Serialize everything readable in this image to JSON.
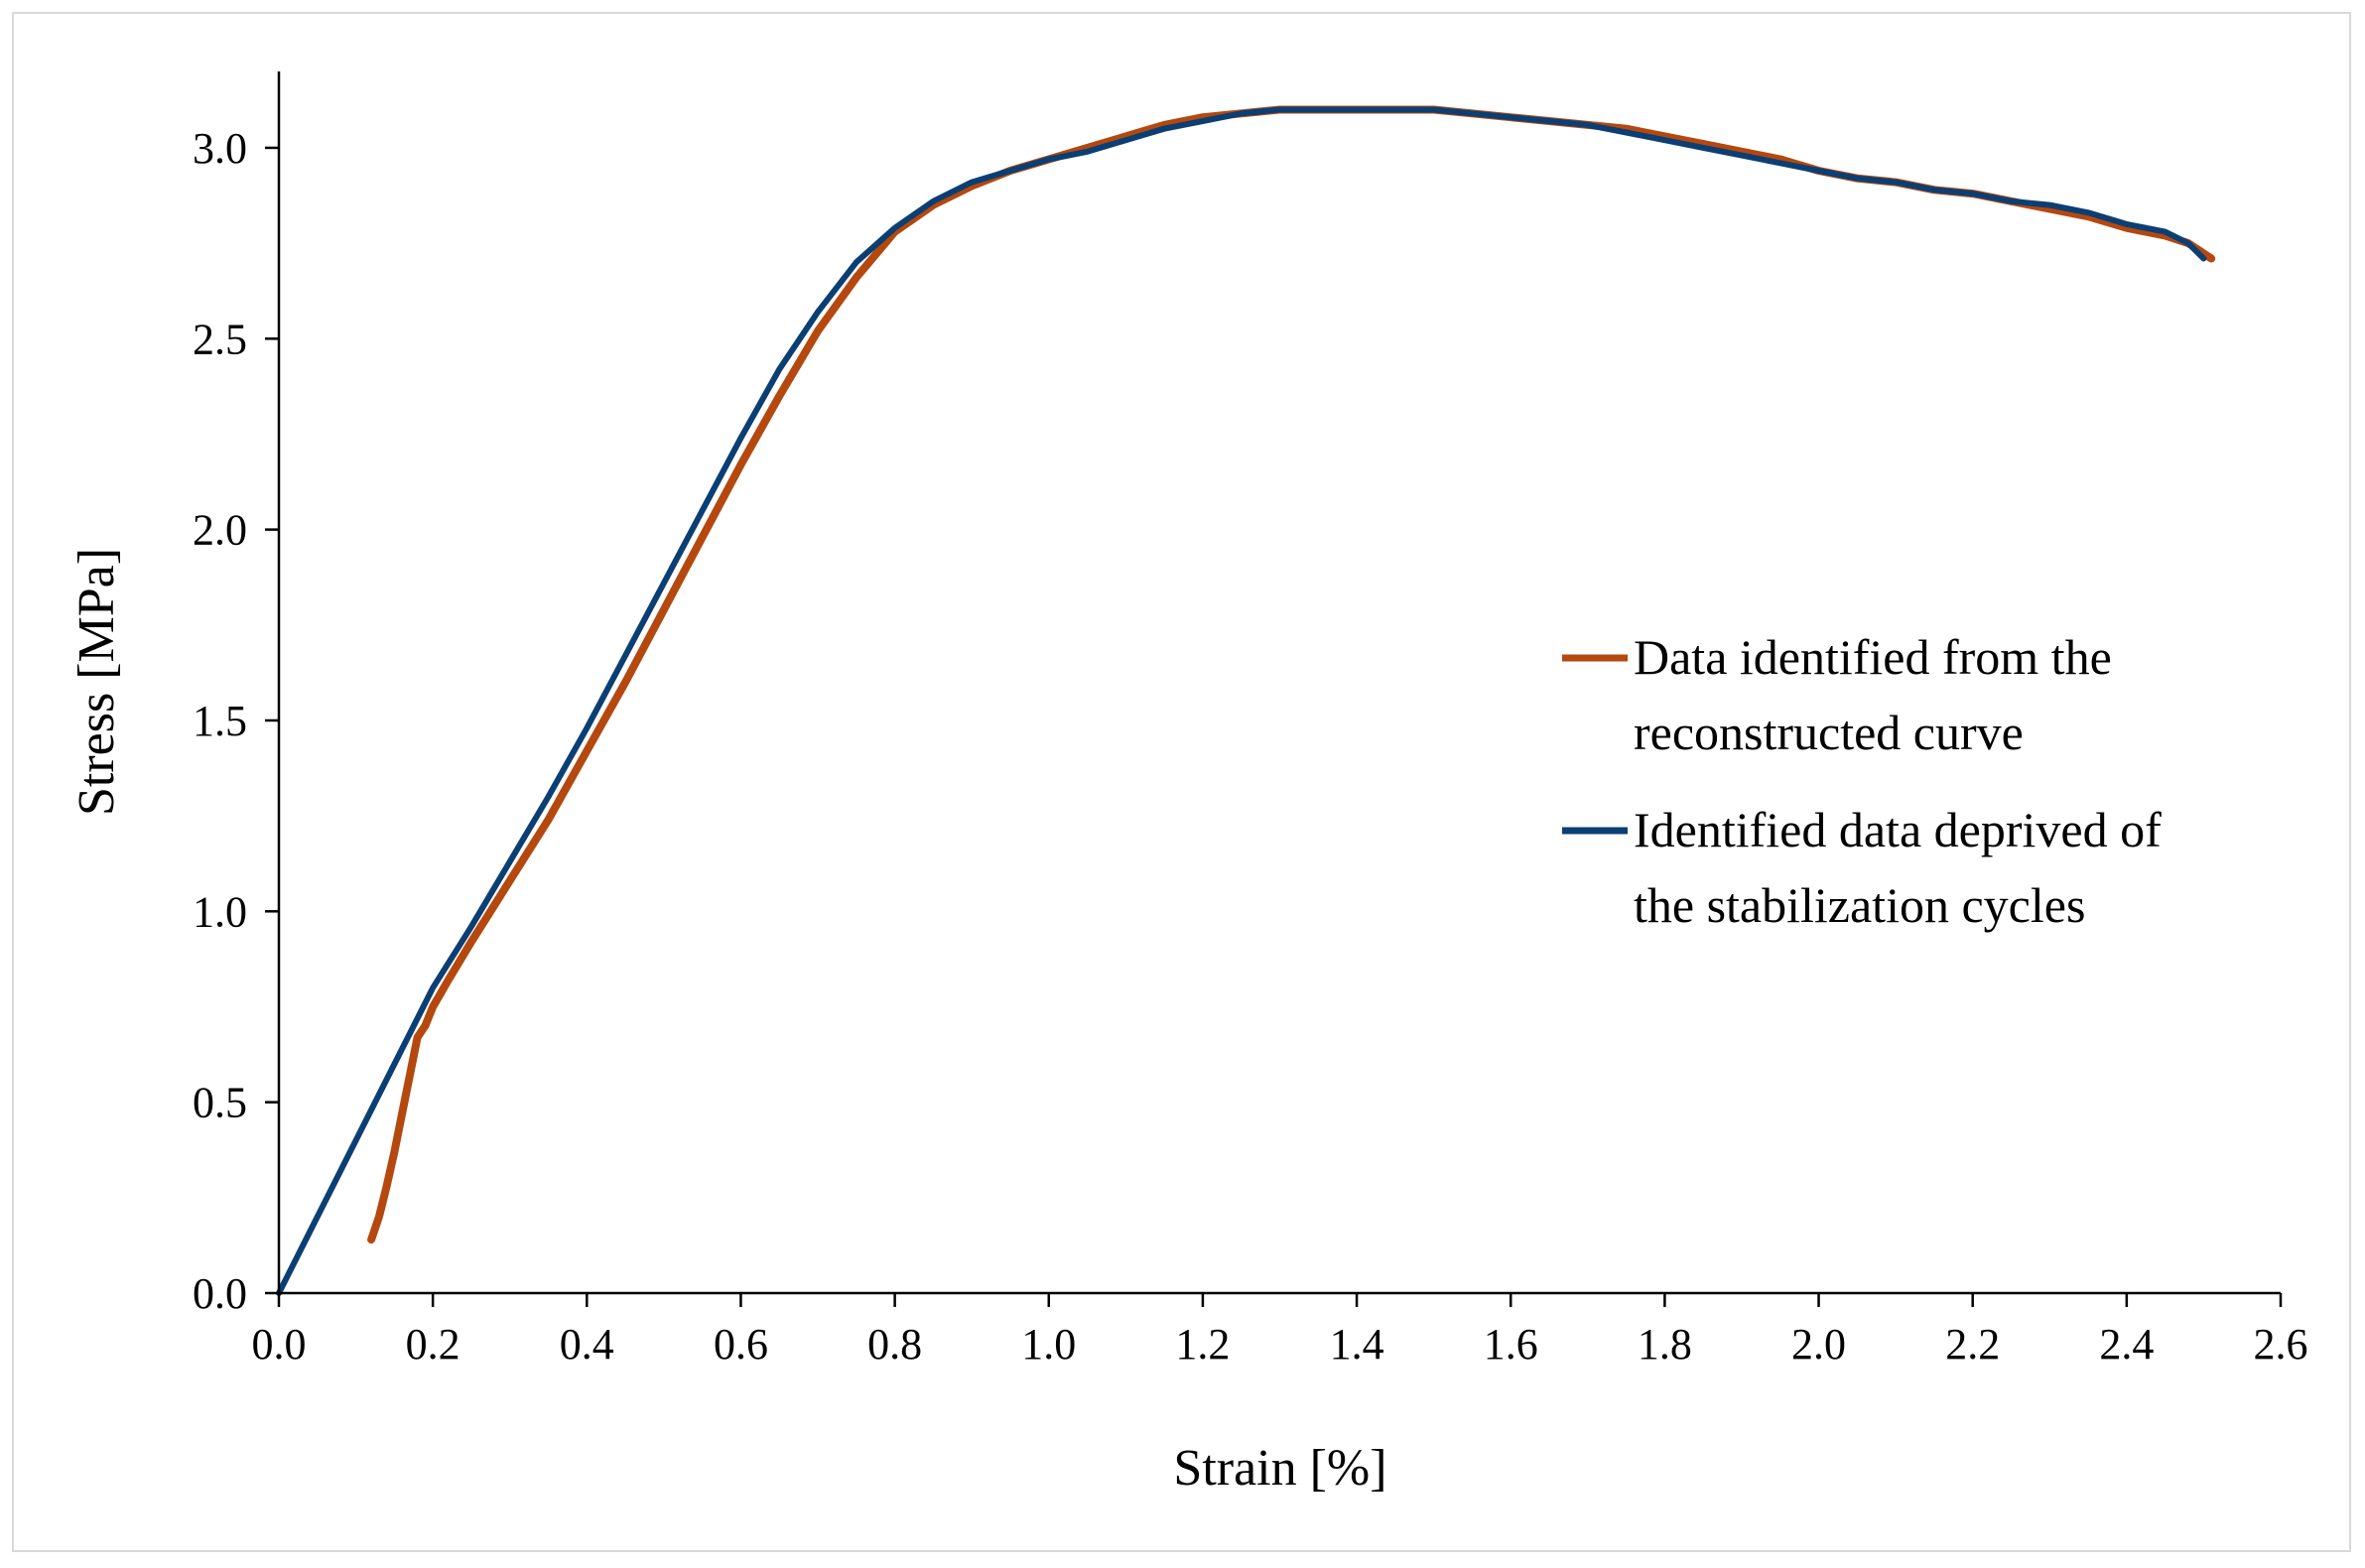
{
  "chart_data": {
    "type": "line",
    "title": "",
    "xlabel": "Strain   [%]",
    "ylabel": "Stress   [MPa]",
    "xlim": [
      0.0,
      2.6
    ],
    "ylim": [
      0.0,
      3.2
    ],
    "x_ticks": [
      "0.0",
      "0.2",
      "0.4",
      "0.6",
      "0.8",
      "1.0",
      "1.2",
      "1.4",
      "1.6",
      "1.8",
      "2.0",
      "2.2",
      "2.4",
      "2.6"
    ],
    "y_ticks": [
      "0.0",
      "0.5",
      "1.0",
      "1.5",
      "2.0",
      "2.5",
      "3.0"
    ],
    "x_tick_values": [
      0.0,
      0.2,
      0.4,
      0.6,
      0.8,
      1.0,
      1.2,
      1.4,
      1.6,
      1.8,
      2.0,
      2.2,
      2.4,
      2.6
    ],
    "y_tick_values": [
      0.0,
      0.5,
      1.0,
      1.5,
      2.0,
      2.5,
      3.0
    ],
    "grid": false,
    "legend_position": "right",
    "series": [
      {
        "name": "Data identified from the reconstructed curve",
        "legend_lines": [
          "Data identified from the",
          "reconstructed curve"
        ],
        "color": "#b5480e",
        "x": [
          0.12,
          0.13,
          0.14,
          0.15,
          0.16,
          0.17,
          0.18,
          0.19,
          0.2,
          0.22,
          0.25,
          0.3,
          0.35,
          0.4,
          0.45,
          0.5,
          0.55,
          0.6,
          0.65,
          0.7,
          0.75,
          0.8,
          0.85,
          0.9,
          0.95,
          1.0,
          1.05,
          1.1,
          1.15,
          1.2,
          1.25,
          1.3,
          1.35,
          1.4,
          1.45,
          1.5,
          1.55,
          1.6,
          1.65,
          1.7,
          1.75,
          1.8,
          1.85,
          1.9,
          1.95,
          2.0,
          2.05,
          2.1,
          2.15,
          2.2,
          2.25,
          2.3,
          2.35,
          2.4,
          2.45,
          2.48,
          2.51
        ],
        "y": [
          0.14,
          0.2,
          0.28,
          0.37,
          0.47,
          0.57,
          0.67,
          0.7,
          0.75,
          0.82,
          0.92,
          1.08,
          1.24,
          1.42,
          1.6,
          1.79,
          1.98,
          2.17,
          2.35,
          2.52,
          2.66,
          2.78,
          2.85,
          2.9,
          2.94,
          2.97,
          3.0,
          3.03,
          3.06,
          3.08,
          3.09,
          3.1,
          3.1,
          3.1,
          3.1,
          3.1,
          3.09,
          3.08,
          3.07,
          3.06,
          3.05,
          3.03,
          3.01,
          2.99,
          2.97,
          2.94,
          2.92,
          2.91,
          2.89,
          2.88,
          2.86,
          2.84,
          2.82,
          2.79,
          2.77,
          2.75,
          2.71
        ]
      },
      {
        "name": "Identified data deprived of the stabilization cycles",
        "legend_lines": [
          "Identified data deprived of",
          "the stabilization cycles"
        ],
        "color": "#0b3f74",
        "x": [
          0.0,
          0.1,
          0.2,
          0.25,
          0.3,
          0.35,
          0.4,
          0.45,
          0.5,
          0.55,
          0.6,
          0.65,
          0.7,
          0.75,
          0.8,
          0.85,
          0.9,
          0.95,
          1.0,
          1.05,
          1.1,
          1.15,
          1.2,
          1.25,
          1.3,
          1.35,
          1.4,
          1.45,
          1.5,
          1.55,
          1.6,
          1.65,
          1.7,
          1.75,
          1.8,
          1.85,
          1.9,
          1.95,
          2.0,
          2.05,
          2.1,
          2.15,
          2.2,
          2.25,
          2.3,
          2.35,
          2.4,
          2.45,
          2.48,
          2.5
        ],
        "y": [
          0.0,
          0.4,
          0.8,
          0.96,
          1.13,
          1.3,
          1.48,
          1.67,
          1.86,
          2.05,
          2.24,
          2.42,
          2.57,
          2.7,
          2.79,
          2.86,
          2.91,
          2.94,
          2.97,
          2.99,
          3.02,
          3.05,
          3.07,
          3.09,
          3.1,
          3.1,
          3.1,
          3.1,
          3.1,
          3.09,
          3.08,
          3.07,
          3.06,
          3.04,
          3.02,
          3.0,
          2.98,
          2.96,
          2.94,
          2.92,
          2.91,
          2.89,
          2.88,
          2.86,
          2.85,
          2.83,
          2.8,
          2.78,
          2.75,
          2.71
        ]
      }
    ]
  }
}
